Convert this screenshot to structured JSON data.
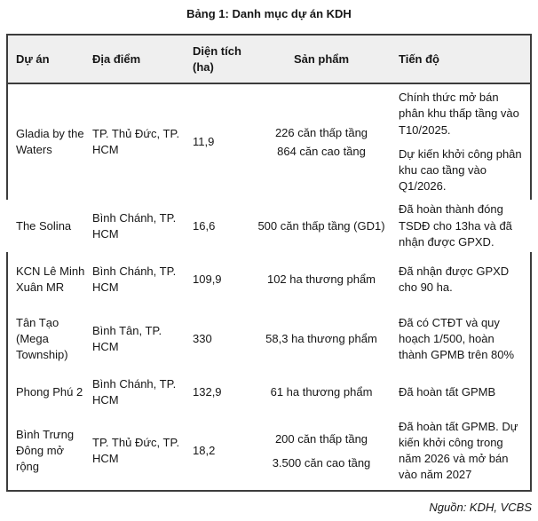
{
  "title": "Bảng 1: Danh mục dự án KDH",
  "source_note": "Nguồn: KDH, VCBS",
  "colors": {
    "header_bg": "#efefef",
    "border": "#3c3c3c",
    "text": "#161616"
  },
  "table": {
    "headers": {
      "project": "Dự án",
      "location": "Địa điểm",
      "area": "Diện tích (ha)",
      "product": "Sản phẩm",
      "progress": "Tiến độ"
    },
    "rows": [
      {
        "du_an": "Gladia by the Waters",
        "dia_diem": "TP. Thủ Đức, TP. HCM",
        "dien_tich": "11,9",
        "san_pham": [
          "226 căn thấp tầng",
          "864 căn cao tầng"
        ],
        "tien_do": [
          "Chính thức mở bán phân khu thấp tầng vào T10/2025.",
          "Dự kiến khởi công phân khu cao tầng vào Q1/2026."
        ]
      },
      {
        "du_an": "The Solina",
        "dia_diem": "Bình Chánh, TP. HCM",
        "dien_tich": "16,6",
        "san_pham": [
          "500 căn thấp tầng (GD1)"
        ],
        "tien_do": [
          "Đã hoàn thành đóng TSDĐ cho 13ha và đã nhận được GPXD."
        ]
      },
      {
        "du_an": "KCN Lê Minh Xuân MR",
        "dia_diem": "Bình Chánh, TP. HCM",
        "dien_tich": "109,9",
        "san_pham": [
          "102 ha thương phẩm"
        ],
        "tien_do": [
          "Đã nhận được GPXD cho 90 ha."
        ]
      },
      {
        "du_an": "Tân Tạo (Mega Township)",
        "dia_diem": "Bình Tân, TP. HCM",
        "dien_tich": "330",
        "san_pham": [
          "58,3 ha thương phẩm"
        ],
        "tien_do": [
          "Đã có CTĐT và quy hoạch 1/500, hoàn thành GPMB trên 80%"
        ]
      },
      {
        "du_an": "Phong Phú 2",
        "dia_diem": "Bình Chánh, TP. HCM",
        "dien_tich": "132,9",
        "san_pham": [
          "61 ha thương phẩm"
        ],
        "tien_do": [
          "Đã hoàn tất GPMB"
        ]
      },
      {
        "du_an": "Bình Trưng Đông mở rộng",
        "dia_diem": "TP. Thủ Đức, TP. HCM",
        "dien_tich": "18,2",
        "san_pham": [
          "200 căn thấp tầng",
          "3.500 căn cao tầng"
        ],
        "tien_do": [
          "Đã hoàn tất GPMB. Dự kiến khởi công trong năm 2026 và mở bán vào năm 2027"
        ]
      }
    ]
  }
}
